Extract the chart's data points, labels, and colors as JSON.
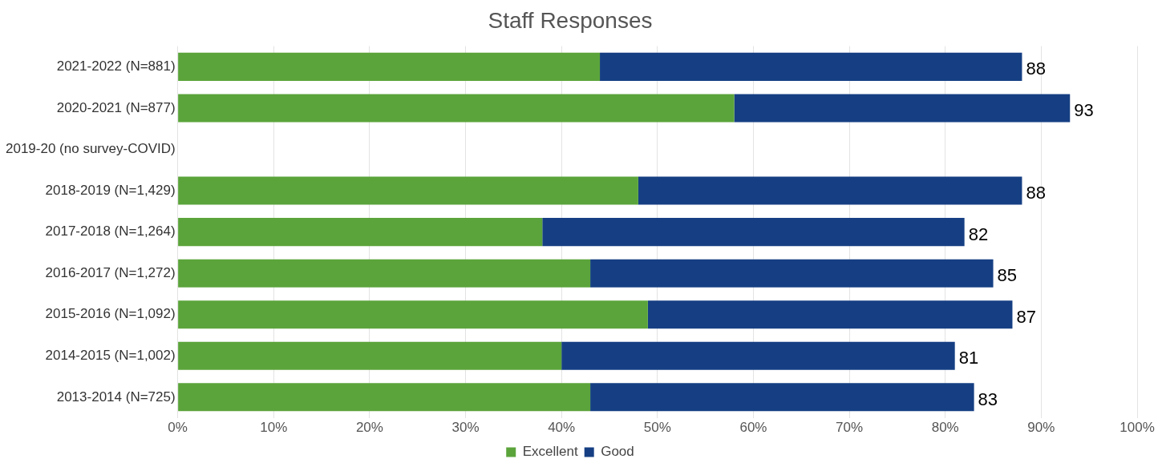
{
  "chart_data": {
    "type": "bar",
    "orientation": "horizontal",
    "stacked": true,
    "title": "Staff Responses",
    "categories": [
      "2021-2022 (N=881)",
      "2020-2021 (N=877)",
      "2019-20 (no survey-COVID)",
      "2018-2019 (N=1,429)",
      "2017-2018 (N=1,264)",
      "2016-2017 (N=1,272)",
      "2015-2016 (N=1,092)",
      "2014-2015 (N=1,002)",
      "2013-2014 (N=725)"
    ],
    "series": [
      {
        "name": "Excellent",
        "color": "#5ba43b",
        "values": [
          44,
          58,
          null,
          48,
          38,
          43,
          49,
          40,
          43
        ]
      },
      {
        "name": "Good",
        "color": "#163f83",
        "values": [
          44,
          35,
          null,
          40,
          44,
          42,
          38,
          41,
          40
        ]
      }
    ],
    "totals": [
      "88",
      "93",
      null,
      "88",
      "82",
      "85",
      "87",
      "81",
      "83"
    ],
    "xlim": [
      0,
      100
    ],
    "xticks": [
      {
        "value": 0,
        "label": "0%"
      },
      {
        "value": 10,
        "label": "10%"
      },
      {
        "value": 20,
        "label": "20%"
      },
      {
        "value": 30,
        "label": "30%"
      },
      {
        "value": 40,
        "label": "40%"
      },
      {
        "value": 50,
        "label": "50%"
      },
      {
        "value": 60,
        "label": "60%"
      },
      {
        "value": 70,
        "label": "70%"
      },
      {
        "value": 80,
        "label": "80%"
      },
      {
        "value": 90,
        "label": "90%"
      },
      {
        "value": 100,
        "label": "100%"
      }
    ],
    "grid": "x",
    "legend": "bottom"
  }
}
